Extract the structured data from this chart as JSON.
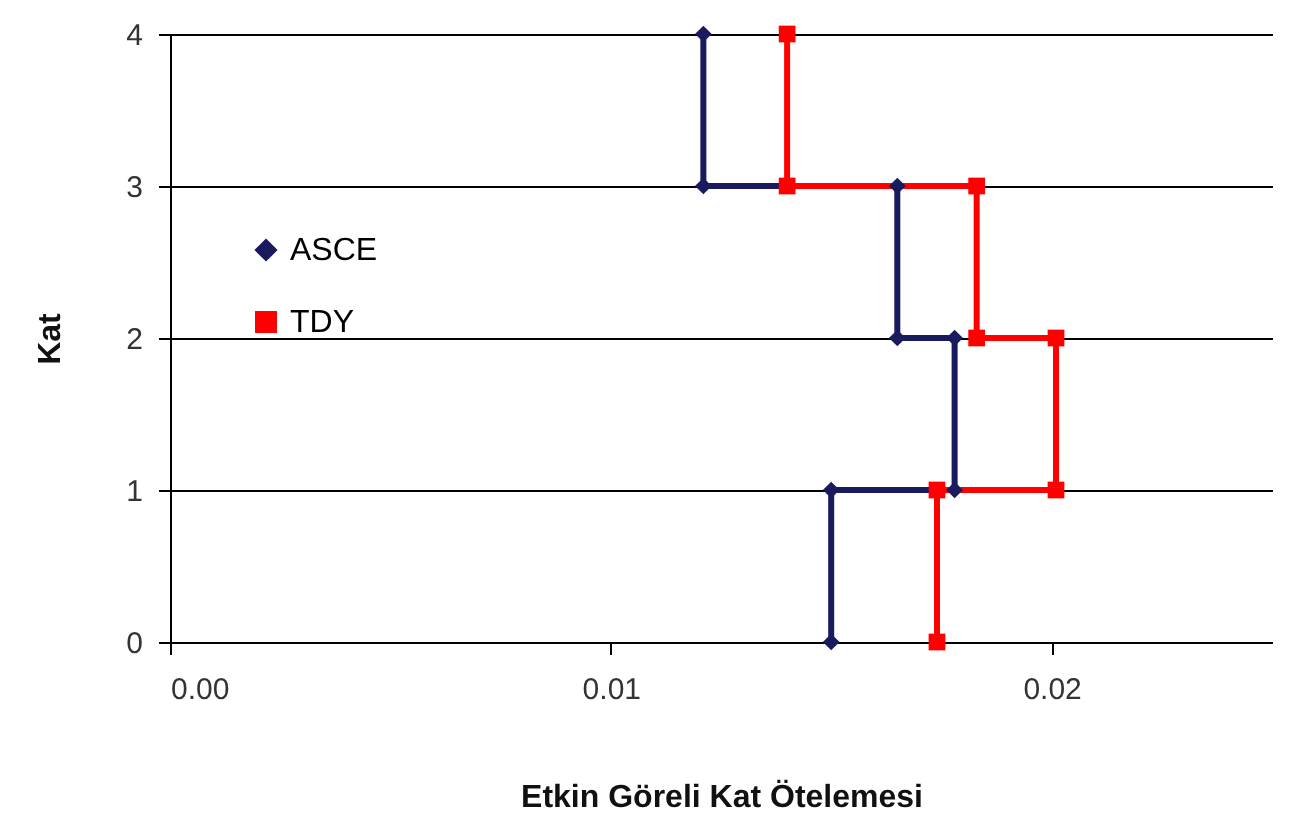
{
  "chart_data": {
    "type": "line",
    "xlabel": "Etkin Göreli Kat Ötelemesi",
    "ylabel": "Kat",
    "xlim": [
      0,
      0.025
    ],
    "xticks": [
      {
        "value": 0,
        "label": "0.00"
      },
      0.01,
      0.02
    ],
    "ylim": [
      0,
      4
    ],
    "yticks": [
      0,
      1,
      2,
      3,
      4
    ],
    "grid": "y",
    "legend": "left",
    "series": [
      {
        "name": "ASCE",
        "color": "#1a1a5e",
        "marker": "diamond",
        "x": [
          0.015,
          0.015,
          0.0178,
          0.0178,
          0.0165,
          0.0165,
          0.0121,
          0.0121
        ],
        "values": [
          0,
          1,
          1,
          2,
          2,
          3,
          3,
          4
        ]
      },
      {
        "name": "TDY",
        "color": "#ff0000",
        "marker": "square",
        "x": [
          0.0174,
          0.0174,
          0.0201,
          0.0201,
          0.0183,
          0.0183,
          0.014,
          0.014
        ],
        "values": [
          0,
          1,
          1,
          2,
          2,
          3,
          3,
          4
        ]
      }
    ]
  }
}
